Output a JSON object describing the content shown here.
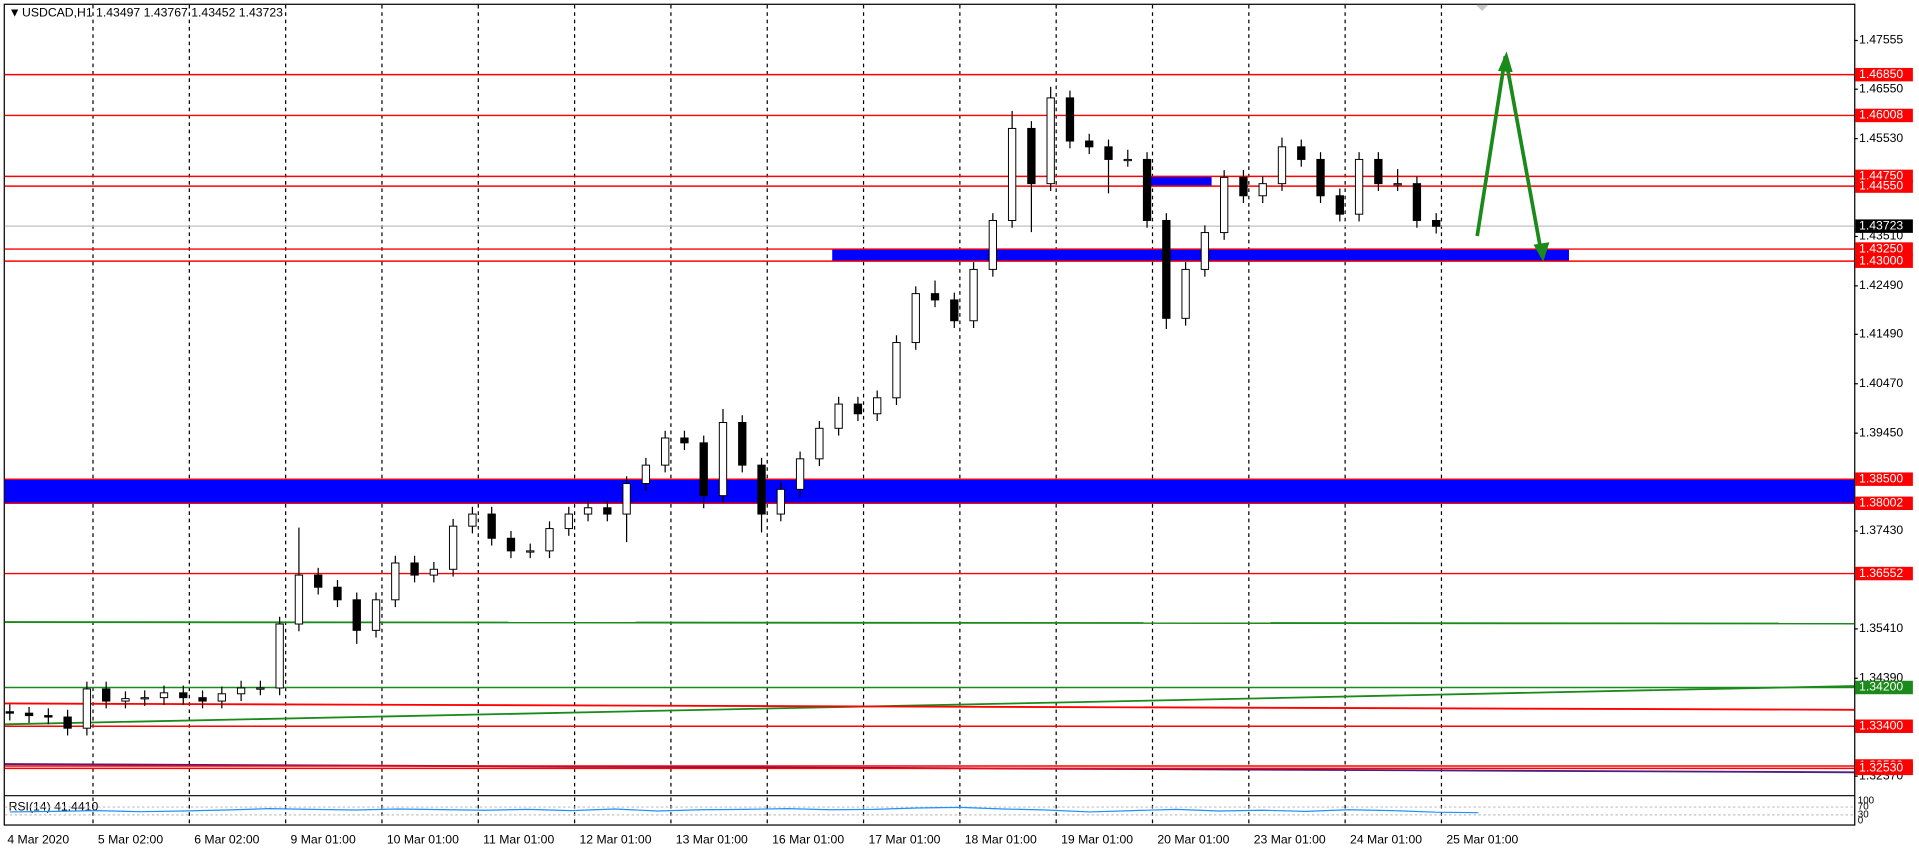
{
  "header": "USDCAD,H1  1.43497 1.43767 1.43452 1.43723",
  "chart_data": {
    "type": "candlestick",
    "ohlc": [
      [
        1.337,
        1.3385,
        1.3352,
        1.3367
      ],
      [
        1.3367,
        1.338,
        1.3347,
        1.3362
      ],
      [
        1.3362,
        1.3377,
        1.3344,
        1.3359
      ],
      [
        1.3359,
        1.3374,
        1.3321,
        1.3336
      ],
      [
        1.3336,
        1.3432,
        1.3321,
        1.3417
      ],
      [
        1.3417,
        1.3432,
        1.3377,
        1.3392
      ],
      [
        1.3392,
        1.3412,
        1.3377,
        1.3397
      ],
      [
        1.3397,
        1.3414,
        1.3382,
        1.3399
      ],
      [
        1.3399,
        1.3424,
        1.3384,
        1.3409
      ],
      [
        1.3409,
        1.3424,
        1.3384,
        1.3399
      ],
      [
        1.3399,
        1.3414,
        1.3377,
        1.3392
      ],
      [
        1.3392,
        1.3422,
        1.3377,
        1.3407
      ],
      [
        1.3407,
        1.3434,
        1.3392,
        1.3419
      ],
      [
        1.3419,
        1.3434,
        1.3404,
        1.3419
      ],
      [
        1.3419,
        1.3566,
        1.3404,
        1.3551
      ],
      [
        1.3551,
        1.375,
        1.3536,
        1.3652
      ],
      [
        1.3652,
        1.3667,
        1.3612,
        1.3627
      ],
      [
        1.3627,
        1.3642,
        1.3586,
        1.3601
      ],
      [
        1.3601,
        1.3616,
        1.351,
        1.3538
      ],
      [
        1.3538,
        1.3616,
        1.3523,
        1.3601
      ],
      [
        1.3601,
        1.3692,
        1.3586,
        1.3677
      ],
      [
        1.3677,
        1.3692,
        1.3637,
        1.3652
      ],
      [
        1.3652,
        1.3679,
        1.3637,
        1.3664
      ],
      [
        1.3664,
        1.3768,
        1.3649,
        1.3753
      ],
      [
        1.3753,
        1.3793,
        1.3738,
        1.3778
      ],
      [
        1.3778,
        1.3793,
        1.3713,
        1.3728
      ],
      [
        1.3728,
        1.3743,
        1.3687,
        1.3702
      ],
      [
        1.3702,
        1.3717,
        1.3687,
        1.3702
      ],
      [
        1.3702,
        1.3763,
        1.3687,
        1.3748
      ],
      [
        1.3748,
        1.3793,
        1.3733,
        1.3778
      ],
      [
        1.3778,
        1.3806,
        1.3763,
        1.3791
      ],
      [
        1.3791,
        1.3806,
        1.3763,
        1.3778
      ],
      [
        1.3778,
        1.3856,
        1.372,
        1.3841
      ],
      [
        1.3841,
        1.3894,
        1.3826,
        1.3879
      ],
      [
        1.3879,
        1.395,
        1.3864,
        1.3935
      ],
      [
        1.3935,
        1.395,
        1.391,
        1.3925
      ],
      [
        1.3925,
        1.394,
        1.379,
        1.3816
      ],
      [
        1.3816,
        1.3995,
        1.3801,
        1.3967
      ],
      [
        1.3967,
        1.3982,
        1.3864,
        1.3879
      ],
      [
        1.3879,
        1.3894,
        1.374,
        1.3778
      ],
      [
        1.3778,
        1.3844,
        1.3763,
        1.3829
      ],
      [
        1.3829,
        1.3907,
        1.3814,
        1.3892
      ],
      [
        1.3892,
        1.397,
        1.3877,
        1.3955
      ],
      [
        1.3955,
        1.402,
        1.394,
        1.4005
      ],
      [
        1.4005,
        1.402,
        1.397,
        1.3985
      ],
      [
        1.3985,
        1.4033,
        1.397,
        1.4018
      ],
      [
        1.4018,
        1.4147,
        1.4003,
        1.4132
      ],
      [
        1.4132,
        1.4248,
        1.4117,
        1.4233
      ],
      [
        1.4233,
        1.426,
        1.4205,
        1.422
      ],
      [
        1.422,
        1.4235,
        1.4162,
        1.4177
      ],
      [
        1.4177,
        1.4298,
        1.4162,
        1.4283
      ],
      [
        1.4283,
        1.4399,
        1.4268,
        1.4384
      ],
      [
        1.4384,
        1.461,
        1.4369,
        1.4574
      ],
      [
        1.4574,
        1.4589,
        1.436,
        1.446
      ],
      [
        1.446,
        1.466,
        1.4445,
        1.4637
      ],
      [
        1.4637,
        1.4652,
        1.4533,
        1.4548
      ],
      [
        1.4548,
        1.4563,
        1.4521,
        1.4536
      ],
      [
        1.4536,
        1.4551,
        1.444,
        1.451
      ],
      [
        1.451,
        1.453,
        1.4495,
        1.451
      ],
      [
        1.451,
        1.4525,
        1.4369,
        1.4384
      ],
      [
        1.4384,
        1.4399,
        1.416,
        1.4182
      ],
      [
        1.4182,
        1.4298,
        1.4167,
        1.4283
      ],
      [
        1.4283,
        1.4374,
        1.4268,
        1.4359
      ],
      [
        1.4359,
        1.4488,
        1.4344,
        1.4473
      ],
      [
        1.4473,
        1.4488,
        1.442,
        1.4435
      ],
      [
        1.4435,
        1.4475,
        1.442,
        1.446
      ],
      [
        1.446,
        1.4555,
        1.4445,
        1.4536
      ],
      [
        1.4536,
        1.4551,
        1.4495,
        1.451
      ],
      [
        1.451,
        1.4525,
        1.442,
        1.4435
      ],
      [
        1.4435,
        1.445,
        1.4382,
        1.4397
      ],
      [
        1.4397,
        1.4525,
        1.4382,
        1.451
      ],
      [
        1.451,
        1.4525,
        1.4445,
        1.446
      ],
      [
        1.446,
        1.449,
        1.4445,
        1.446
      ],
      [
        1.446,
        1.4475,
        1.4369,
        1.4384
      ],
      [
        1.4384,
        1.4399,
        1.4357,
        1.4372
      ]
    ],
    "ylim": [
      1.3203,
      1.4829
    ],
    "yticks": [
      1.47555,
      {
        "value": 1.4655,
        "label": "1.46550"
      },
      {
        "value": 1.4553,
        "label": "1.45530"
      },
      {
        "value": 1.4351,
        "label": "1.43510"
      },
      {
        "value": 1.4249,
        "label": "1.42490"
      },
      {
        "value": 1.4149,
        "label": "1.41490"
      },
      {
        "value": 1.4047,
        "label": "1.40470"
      },
      {
        "value": 1.3945,
        "label": "1.39450"
      },
      {
        "value": 1.3743,
        "label": "1.37430"
      },
      {
        "value": 1.3541,
        "label": "1.35410"
      },
      {
        "value": 1.3439,
        "label": "1.34390"
      },
      {
        "value": 1.3237,
        "label": "1.32370"
      }
    ],
    "levels": [
      {
        "value": 1.4685,
        "label": "1.46850",
        "color": "#ff0000"
      },
      {
        "value": 1.46008,
        "label": "1.46008",
        "color": "#ff0000"
      },
      {
        "value": 1.4475,
        "label": "1.44750",
        "color": "#ff0000"
      },
      {
        "value": 1.4455,
        "label": "1.44550",
        "color": "#ff0000"
      },
      {
        "value": 1.4325,
        "label": "1.43250",
        "color": "#ff0000"
      },
      {
        "value": 1.43,
        "label": "1.43000",
        "color": "#ff0000"
      },
      {
        "value": 1.385,
        "label": "1.38500",
        "color": "#ff0000"
      },
      {
        "value": 1.38002,
        "label": "1.38002",
        "color": "#ff0000"
      },
      {
        "value": 1.36552,
        "label": "1.36552",
        "color": "#ff0000"
      },
      {
        "value": 1.342,
        "label": "1.34200",
        "color": "#1a8a1a"
      },
      {
        "value": 1.334,
        "label": "1.33400",
        "color": "#ff0000"
      },
      {
        "value": 1.3258,
        "label": "1.32580",
        "color": "#ff0000"
      },
      {
        "value": 1.3253,
        "label": "1.32530",
        "color": "#ff0000"
      }
    ],
    "current": 1.43723,
    "zones": [
      {
        "high": 1.385,
        "low": 1.38002,
        "color": "#0000ff"
      },
      {
        "high": 1.4325,
        "low": 1.43,
        "color": "#0000ff"
      },
      {
        "high": 1.4475,
        "low": 1.4455,
        "color": "#0000ff"
      }
    ],
    "trendlines": [
      {
        "start": 1.3344,
        "end": 1.3423,
        "color": "#1a8a1a"
      },
      {
        "start": 1.3555,
        "end": 1.3552,
        "color": "#1a8a1a"
      },
      {
        "start": 1.3387,
        "end": 1.3374,
        "color": "#ff0000"
      },
      {
        "start": 1.3262,
        "end": 1.3245,
        "color": "#4b2080"
      }
    ],
    "x_labels": [
      "4 Mar 2020",
      "5 Mar 02:00",
      "6 Mar 02:00",
      "9 Mar 01:00",
      "10 Mar 01:00",
      "11 Mar 01:00",
      "12 Mar 01:00",
      "13 Mar 01:00",
      "16 Mar 01:00",
      "17 Mar 01:00",
      "18 Mar 01:00",
      "19 Mar 01:00",
      "20 Mar 01:00",
      "23 Mar 01:00",
      "24 Mar 01:00",
      "25 Mar 01:00"
    ],
    "indicator": {
      "label": "RSI(14) 41.4410",
      "ylim": [
        0,
        100
      ],
      "yticks": [
        100,
        70,
        30,
        0
      ],
      "color": "#1e90ff",
      "values": [
        45,
        48,
        52,
        46,
        50,
        55,
        62,
        58,
        55,
        60,
        57,
        54,
        58,
        52,
        60,
        50,
        56,
        58,
        62,
        56,
        58,
        65,
        68,
        60,
        55,
        45,
        52,
        58,
        50,
        54,
        48,
        56,
        52,
        44,
        41
      ]
    }
  }
}
